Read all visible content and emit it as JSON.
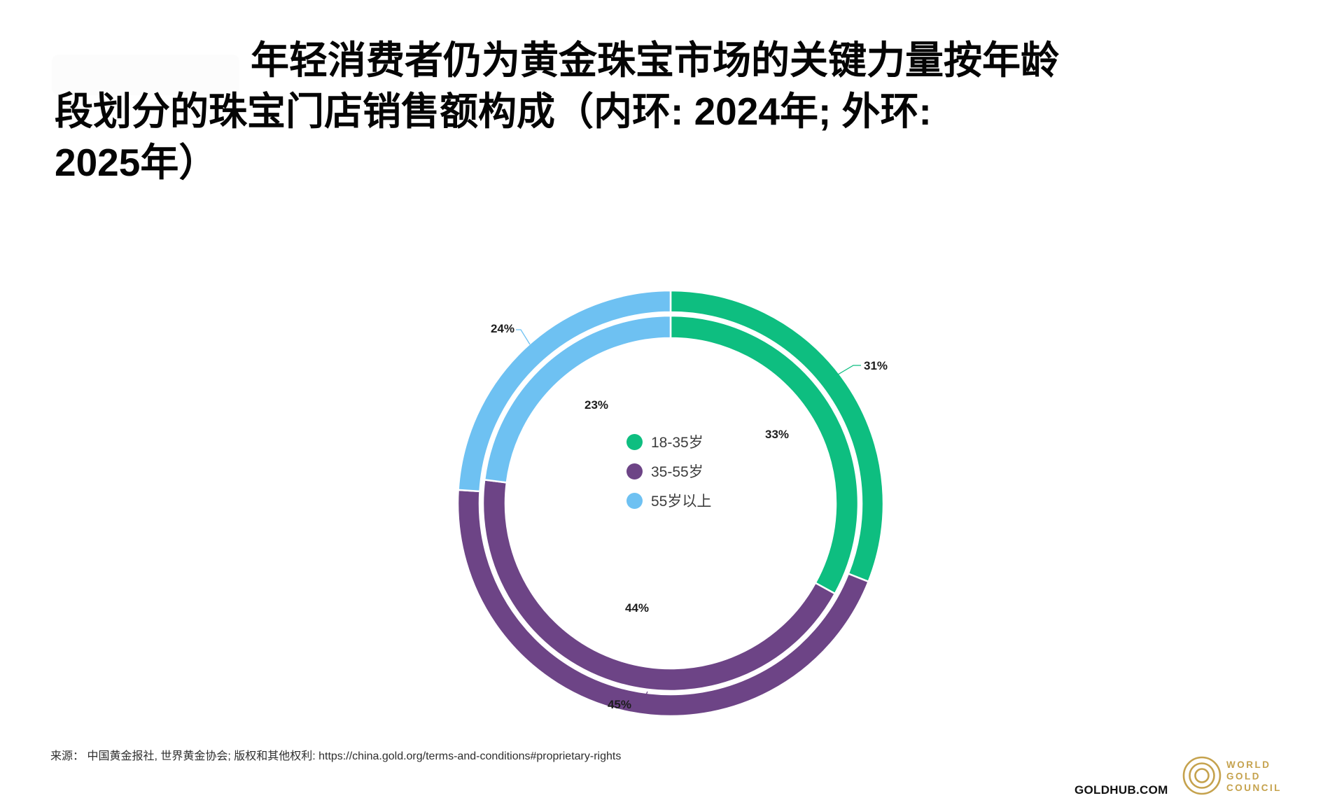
{
  "title": {
    "lines": [
      "年轻消费者仍为黄金珠宝市场的关键力量按年龄",
      "段划分的珠宝门店销售额构成（内环: 2024年; 外环:",
      "2025年）"
    ]
  },
  "legend": {
    "items": [
      {
        "label": "18-35岁"
      },
      {
        "label": "35-55岁"
      },
      {
        "label": "55岁以上"
      }
    ]
  },
  "chart_data": {
    "type": "pie",
    "subtype": "double-ring-donut",
    "title": "按年龄段划分的珠宝门店销售额构成（内环: 2024年; 外环: 2025年）",
    "categories": [
      "18-35岁",
      "35-55岁",
      "55岁以上"
    ],
    "colors": [
      "#0EBE80",
      "#6D4486",
      "#6EC1F2"
    ],
    "series": [
      {
        "name": "2024年",
        "ring": "inner",
        "values": [
          33,
          44,
          23
        ],
        "labels": [
          "33%",
          "44%",
          "23%"
        ]
      },
      {
        "name": "2025年",
        "ring": "outer",
        "values": [
          31,
          45,
          24
        ],
        "labels": [
          "31%",
          "45%",
          "24%"
        ]
      }
    ],
    "start_angle_deg": 0,
    "direction": "clockwise",
    "legend_position": "center",
    "units": "%"
  },
  "footer": {
    "source": "来源： 中国黄金报社, 世界黄金协会; 版权和其他权利: https://china.gold.org/terms-and-conditions#proprietary-rights",
    "goldhub": "GOLDHUB.COM",
    "logo_lines": [
      "WORLD",
      "GOLD",
      "COUNCIL"
    ],
    "logo_color": "#C5A24D"
  }
}
